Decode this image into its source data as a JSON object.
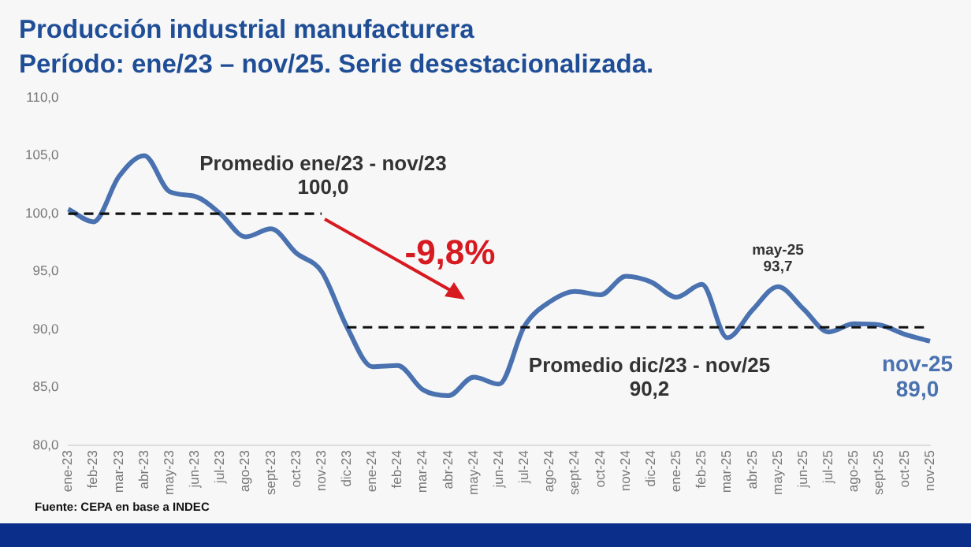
{
  "chart_data": {
    "type": "line",
    "title": "Producción industrial manufacturera",
    "subtitle": "Período: ene/23 – nov/25. Serie desestacionalizada.",
    "categories": [
      "ene-23",
      "feb-23",
      "mar-23",
      "abr-23",
      "may-23",
      "jun-23",
      "jul-23",
      "ago-23",
      "sept-23",
      "oct-23",
      "nov-23",
      "dic-23",
      "ene-24",
      "feb-24",
      "mar-24",
      "abr-24",
      "may-24",
      "jun-24",
      "jul-24",
      "ago-24",
      "sept-24",
      "oct-24",
      "nov-24",
      "dic-24",
      "ene-25",
      "feb-25",
      "mar-25",
      "abr-25",
      "may-25",
      "jun-25",
      "jul-25",
      "ago-25",
      "sept-25",
      "oct-25",
      "nov-25"
    ],
    "series": [
      {
        "color": "#4a72b0",
        "line_style": "solid",
        "values": [
          100.4,
          99.3,
          103.2,
          105.0,
          101.9,
          101.5,
          100.0,
          98.0,
          98.7,
          96.6,
          95.0,
          90.2,
          86.8,
          86.9,
          84.8,
          84.3,
          85.9,
          85.3,
          90.3,
          92.4,
          93.3,
          93.0,
          94.6,
          94.1,
          92.8,
          93.9,
          89.3,
          91.7,
          93.7,
          91.8,
          89.8,
          90.5,
          90.4,
          89.6,
          89.0
        ]
      },
      {
        "color": "#111111",
        "line_style": "dashed",
        "values": [
          100.0,
          100.0,
          100.0,
          100.0,
          100.0,
          100.0,
          100.0,
          100.0,
          100.0,
          100.0,
          100.0,
          null,
          null,
          null,
          null,
          null,
          null,
          null,
          null,
          null,
          null,
          null,
          null,
          null,
          null,
          null,
          null,
          null,
          null,
          null,
          null,
          null,
          null,
          null,
          null
        ]
      },
      {
        "color": "#111111",
        "line_style": "dashed",
        "values": [
          null,
          null,
          null,
          null,
          null,
          null,
          null,
          null,
          null,
          null,
          null,
          90.2,
          90.2,
          90.2,
          90.2,
          90.2,
          90.2,
          90.2,
          90.2,
          90.2,
          90.2,
          90.2,
          90.2,
          90.2,
          90.2,
          90.2,
          90.2,
          90.2,
          90.2,
          90.2,
          90.2,
          90.2,
          90.2,
          90.2,
          90.2
        ]
      }
    ],
    "ylim": [
      80,
      110
    ],
    "yticks": [
      {
        "value": 80,
        "label": "80,0"
      },
      {
        "value": 85,
        "label": "85,0"
      },
      {
        "value": 90,
        "label": "90,0"
      },
      {
        "value": 95,
        "label": "95,0"
      },
      {
        "value": 100,
        "label": "100,0"
      },
      {
        "value": 105,
        "label": "105,0"
      },
      {
        "value": 110,
        "label": "110,0"
      }
    ],
    "grid": false,
    "legend": false,
    "marker": "none",
    "annotations": [
      "Promedio ene/23 - nov/23\n100,0",
      {
        "text": "-9,8%",
        "x": "abr-24",
        "y": 90.2
      },
      "Promedio dic/23 - nov/25\n90,2",
      {
        "text": "may-25\n93,7",
        "x": "may-25",
        "y": 93.7
      },
      {
        "text": "nov-25\n89,0",
        "x": "nov-25",
        "y": 89.0
      },
      "Fuente: CEPA en base a INDEC"
    ]
  }
}
